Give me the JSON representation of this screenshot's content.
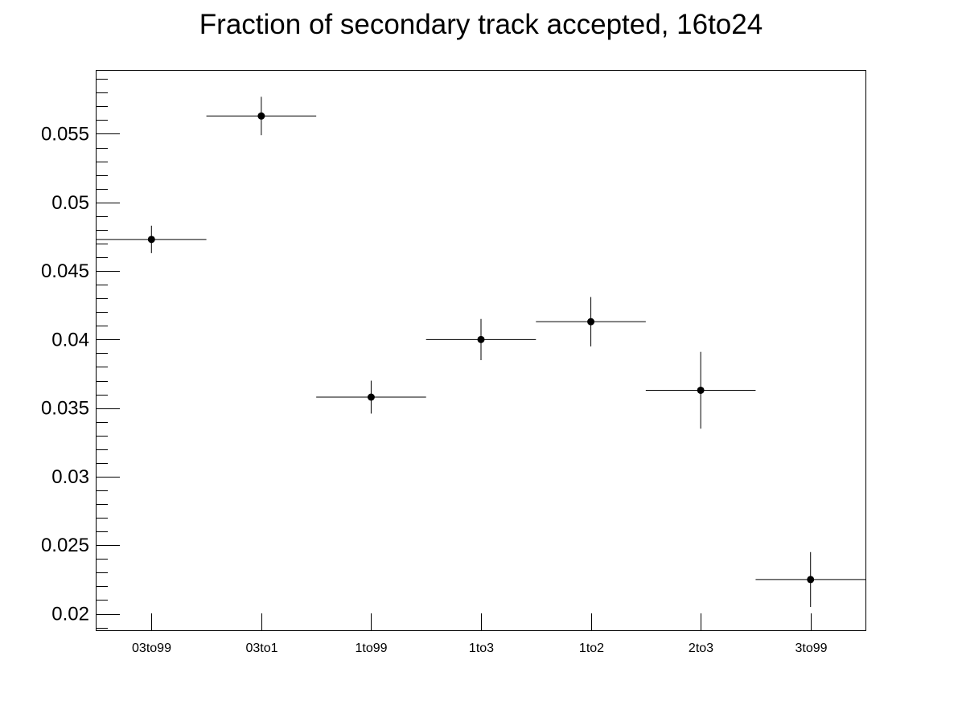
{
  "chart_data": {
    "type": "scatter",
    "title": "Fraction of secondary track accepted, 16to24",
    "xlabel": "",
    "ylabel": "",
    "categories": [
      "03to99",
      "03to1",
      "1to99",
      "1to3",
      "1to2",
      "2to3",
      "3to99"
    ],
    "values": [
      0.0473,
      0.0563,
      0.0358,
      0.04,
      0.0413,
      0.0363,
      0.0225
    ],
    "errors": [
      0.001,
      0.0014,
      0.0012,
      0.0015,
      0.0018,
      0.0028,
      0.002
    ],
    "ylim": [
      0.0188,
      0.0596
    ],
    "yticks": [
      0.02,
      0.025,
      0.03,
      0.035,
      0.04,
      0.045,
      0.05,
      0.055
    ],
    "ytick_labels": [
      "0.02",
      "0.025",
      "0.03",
      "0.035",
      "0.04",
      "0.045",
      "0.05",
      "0.055"
    ],
    "grid": false,
    "legend": "none"
  }
}
